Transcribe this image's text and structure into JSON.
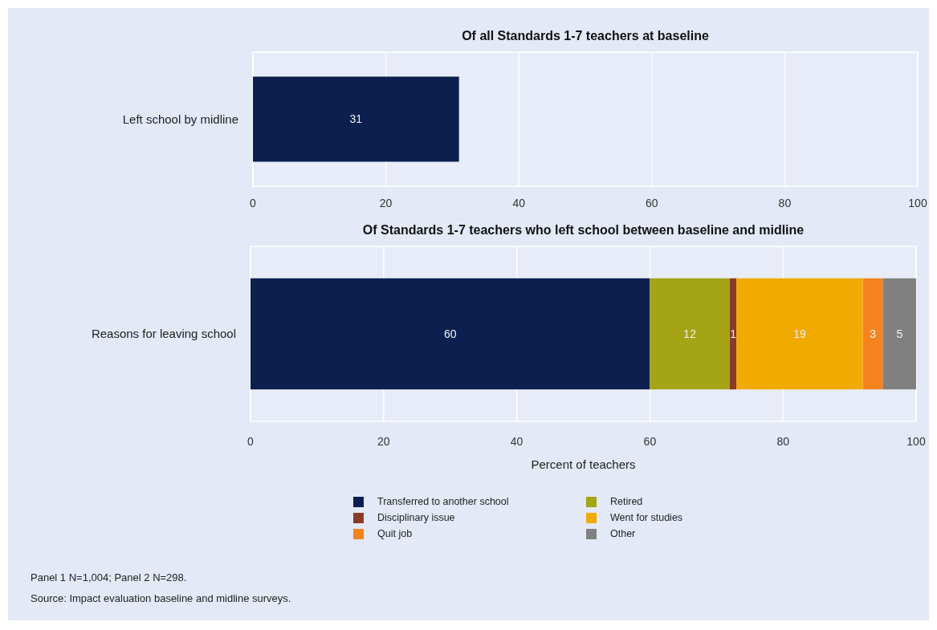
{
  "chart_data": [
    {
      "type": "bar",
      "orientation": "horizontal",
      "title": "Of all Standards 1-7 teachers at baseline",
      "categories": [
        "Left school by midline"
      ],
      "values": [
        31
      ],
      "color": "#0c1f4f",
      "xlim": [
        0,
        100
      ],
      "xticks": [
        0,
        20,
        40,
        60,
        80,
        100
      ],
      "grid": "x",
      "data_labels": true
    },
    {
      "type": "bar",
      "orientation": "horizontal",
      "stacked": true,
      "title": "Of Standards 1-7 teachers who left school between baseline and midline",
      "xlabel": "Percent of teachers",
      "categories": [
        "Reasons for leaving school"
      ],
      "series": [
        {
          "name": "Transferred to another school",
          "color": "#0c1f4f",
          "values": [
            60
          ]
        },
        {
          "name": "Retired",
          "color": "#a4a414",
          "values": [
            12
          ]
        },
        {
          "name": "Disciplinary issue",
          "color": "#8b3a2a",
          "values": [
            1
          ]
        },
        {
          "name": "Went for studies",
          "color": "#f0aa00",
          "values": [
            19
          ]
        },
        {
          "name": "Quit job",
          "color": "#f5841f",
          "values": [
            3
          ]
        },
        {
          "name": "Other",
          "color": "#808080",
          "values": [
            5
          ]
        }
      ],
      "xlim": [
        0,
        100
      ],
      "xticks": [
        0,
        20,
        40,
        60,
        80,
        100
      ],
      "grid": "x",
      "data_labels": true,
      "legend": "bottom",
      "annotations": [
        "Panel 1 N=1,004; Panel 2 N=298.",
        "Source: Impact evaluation baseline and midline surveys."
      ]
    }
  ]
}
